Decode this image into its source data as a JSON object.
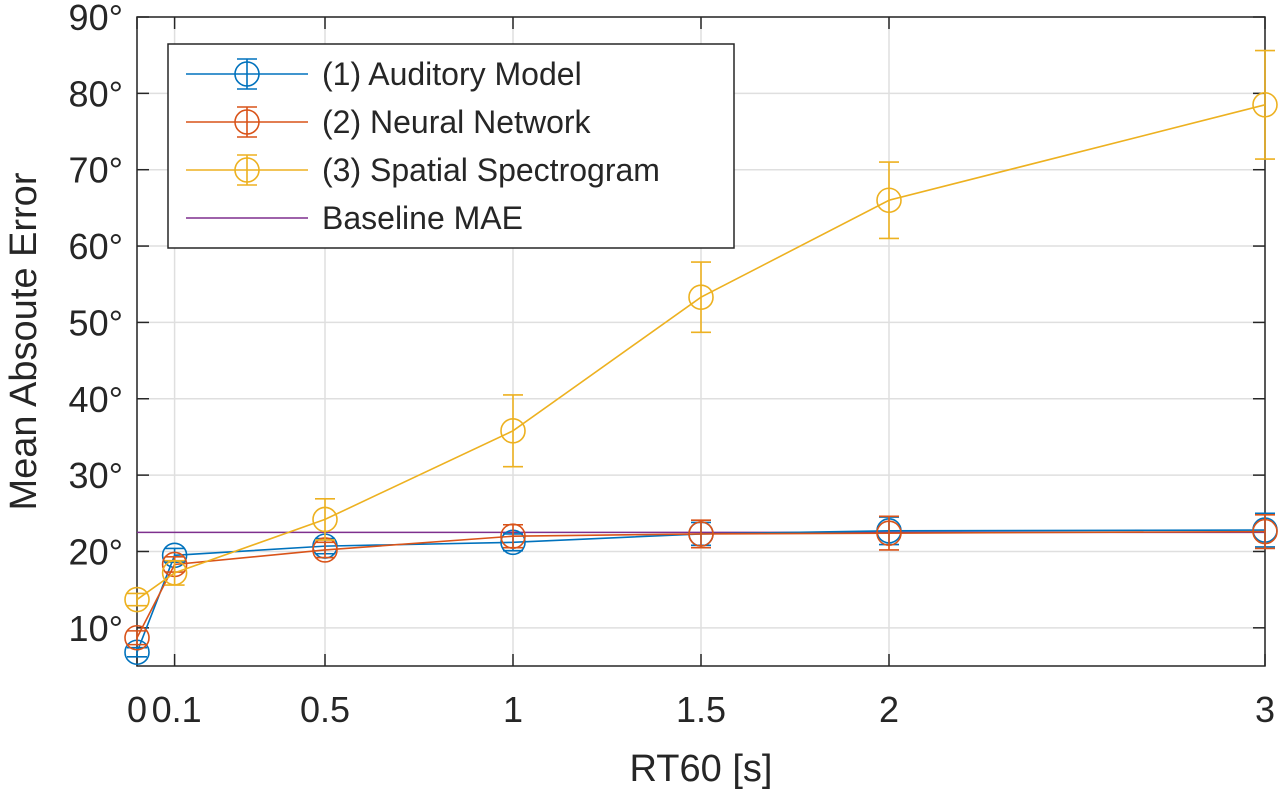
{
  "chart_data": {
    "type": "line",
    "title": "",
    "xlabel": "RT60 [s]",
    "ylabel": "Mean Absoute Error",
    "xlim": [
      0,
      3
    ],
    "ylim": [
      5,
      90
    ],
    "x_ticks": [
      0,
      0.1,
      0.5,
      1,
      1.5,
      2,
      3
    ],
    "x_tick_labels": [
      "0",
      "0.1",
      "0.5",
      "1",
      "1.5",
      "2",
      "3"
    ],
    "y_ticks": [
      10,
      20,
      30,
      40,
      50,
      60,
      70,
      80,
      90
    ],
    "y_tick_labels": [
      "10°",
      "20°",
      "30°",
      "40°",
      "50°",
      "60°",
      "70°",
      "80°",
      "90°"
    ],
    "grid": true,
    "legend_position": "top-left",
    "x": [
      0,
      0.1,
      0.5,
      1,
      1.5,
      2,
      3
    ],
    "series": [
      {
        "name": "(1) Auditory Model",
        "color": "#0072BD",
        "marker": "circle",
        "values": [
          6.8,
          19.5,
          20.7,
          21.2,
          22.3,
          22.7,
          22.8
        ],
        "error": [
          0.6,
          0.9,
          1.0,
          1.1,
          1.5,
          1.8,
          2.2
        ]
      },
      {
        "name": "(2) Neural Network",
        "color": "#D95319",
        "marker": "circle",
        "values": [
          8.7,
          18.3,
          20.2,
          22.0,
          22.3,
          22.4,
          22.6
        ],
        "error": [
          0.9,
          1.0,
          1.0,
          1.5,
          1.8,
          2.2,
          2.2
        ]
      },
      {
        "name": "(3) Spatial Spectrogram",
        "color": "#EDB120",
        "marker": "circle",
        "values": [
          13.7,
          17.2,
          24.2,
          35.8,
          53.3,
          66.0,
          78.5
        ],
        "error": [
          0.8,
          1.6,
          2.7,
          4.7,
          4.6,
          5.0,
          7.1
        ]
      },
      {
        "name": "Baseline MAE",
        "color": "#7E2F8E",
        "marker": "none",
        "constant": 22.5
      }
    ]
  }
}
